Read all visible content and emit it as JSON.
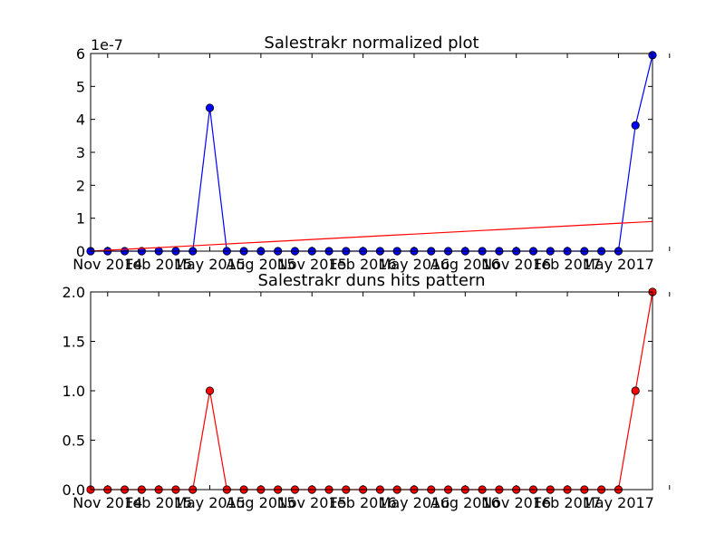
{
  "chart_data": [
    {
      "type": "line",
      "title": "Salestrakr normalized plot",
      "xlabel": "",
      "ylabel": "",
      "y_offset_label": "1e-7",
      "ylim": [
        0,
        6
      ],
      "yticks": [
        0,
        1,
        2,
        3,
        4,
        5,
        6
      ],
      "x_count": 34,
      "x_tick_indices": [
        1,
        4,
        7,
        10,
        13,
        16,
        19,
        22,
        25,
        28,
        31,
        34
      ],
      "x_tick_labels": [
        "Nov 2014",
        "Feb 2015",
        "May 2015",
        "Aug 2015",
        "Nov 2015",
        "Feb 2016",
        "May 2016",
        "Aug 2016",
        "Nov 2016",
        "Feb 2017",
        "May 2017",
        ""
      ],
      "colors": {
        "series": "#0000ff",
        "trend": "#ff0000"
      },
      "series": [
        {
          "values": [
            0,
            0,
            0,
            0,
            0,
            0,
            0,
            4.35,
            0,
            0,
            0,
            0,
            0,
            0,
            0,
            0,
            0,
            0,
            0,
            0,
            0,
            0,
            0,
            0,
            0,
            0,
            0,
            0,
            0,
            0,
            0,
            0,
            3.82,
            5.95
          ],
          "style": "line-markers"
        },
        {
          "values": [
            0.0,
            0.0272,
            0.0545,
            0.0818,
            0.1091,
            0.1364,
            0.1636,
            0.1909,
            0.2182,
            0.2455,
            0.2727,
            0.3,
            0.3273,
            0.3545,
            0.3818,
            0.4091,
            0.4364,
            0.4636,
            0.4909,
            0.5182,
            0.5455,
            0.5727,
            0.6,
            0.6273,
            0.6545,
            0.6818,
            0.7091,
            0.7364,
            0.7636,
            0.7909,
            0.8182,
            0.8455,
            0.8727,
            0.9
          ],
          "style": "line"
        }
      ]
    },
    {
      "type": "line",
      "title": "Salestrakr duns hits pattern",
      "xlabel": "",
      "ylabel": "",
      "ylim": [
        0,
        2
      ],
      "yticks": [
        "0.0",
        "0.5",
        "1.0",
        "1.5",
        "2.0"
      ],
      "x_count": 34,
      "x_tick_indices": [
        1,
        4,
        7,
        10,
        13,
        16,
        19,
        22,
        25,
        28,
        31,
        34
      ],
      "x_tick_labels": [
        "Nov 2014",
        "Feb 2015",
        "May 2015",
        "Aug 2015",
        "Nov 2015",
        "Feb 2016",
        "May 2016",
        "Aug 2016",
        "Nov 2016",
        "Feb 2017",
        "May 2017",
        ""
      ],
      "colors": {
        "series": "#ff0000"
      },
      "series": [
        {
          "values": [
            0,
            0,
            0,
            0,
            0,
            0,
            0,
            1,
            0,
            0,
            0,
            0,
            0,
            0,
            0,
            0,
            0,
            0,
            0,
            0,
            0,
            0,
            0,
            0,
            0,
            0,
            0,
            0,
            0,
            0,
            0,
            0,
            1,
            2
          ],
          "style": "line-markers"
        }
      ]
    }
  ]
}
